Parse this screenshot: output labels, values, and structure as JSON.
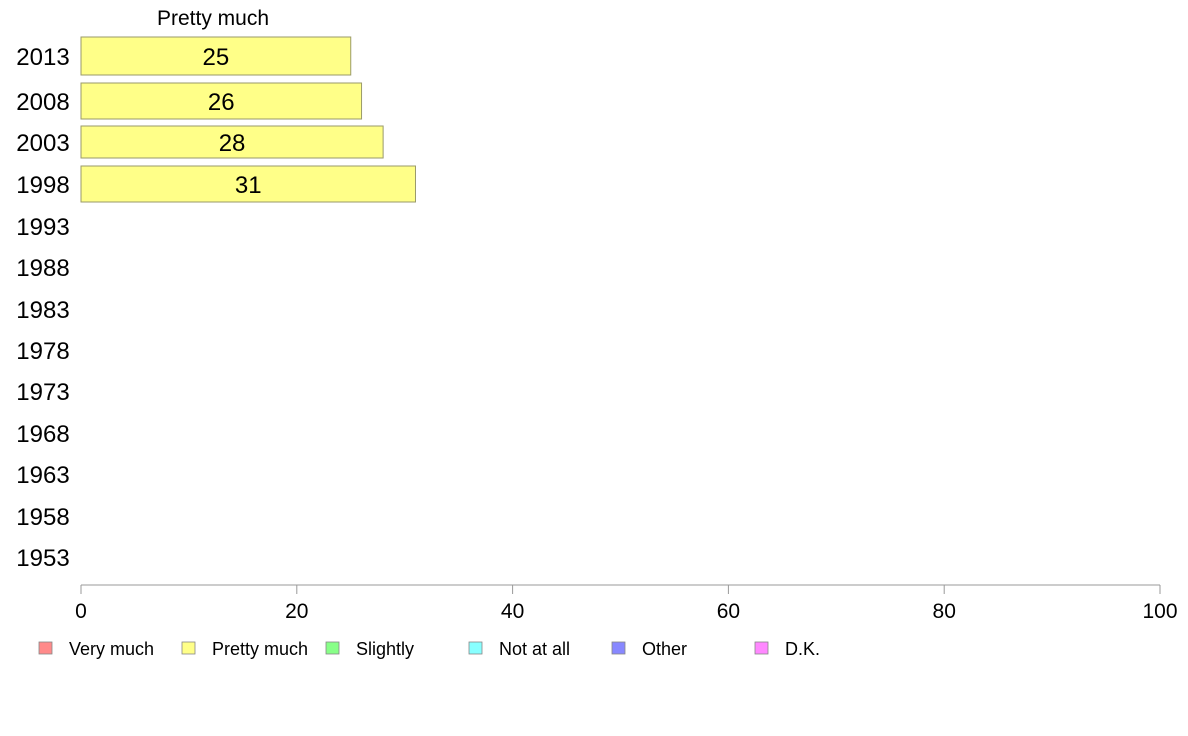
{
  "chart_data": {
    "type": "bar",
    "orientation": "horizontal",
    "series_title": "Pretty much",
    "categories": [
      "2013",
      "2008",
      "2003",
      "1998",
      "1993",
      "1988",
      "1983",
      "1978",
      "1973",
      "1968",
      "1963",
      "1958",
      "1953"
    ],
    "series": [
      {
        "name": "Pretty much",
        "values": [
          25,
          26,
          28,
          31,
          null,
          null,
          null,
          null,
          null,
          null,
          null,
          null,
          null
        ]
      }
    ],
    "xlim": [
      0,
      100
    ],
    "xticks": [
      0,
      20,
      40,
      60,
      80,
      100
    ],
    "grid": false,
    "legend_placement": "bottom",
    "legend": [
      {
        "label": "Very much",
        "color": "#ff8a8a"
      },
      {
        "label": "Pretty much",
        "color": "#ffff88"
      },
      {
        "label": "Slightly",
        "color": "#88ff88"
      },
      {
        "label": "Not at all",
        "color": "#88ffff"
      },
      {
        "label": "Other",
        "color": "#8888ff"
      },
      {
        "label": "D.K.",
        "color": "#ff88ff"
      }
    ],
    "bar_color": "#ffff88",
    "bar_edge_color": "#9a9a6a",
    "axis_color": "#999999"
  }
}
